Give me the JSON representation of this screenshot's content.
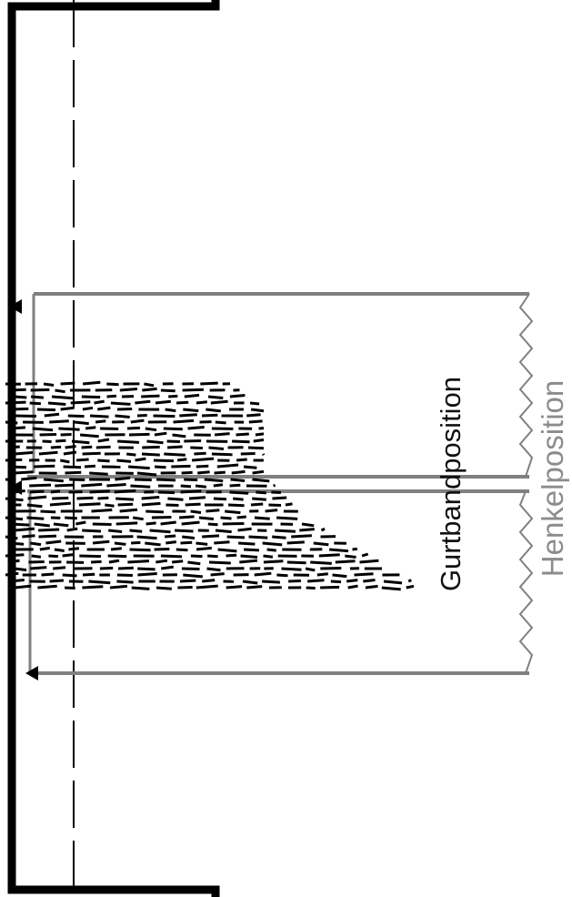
{
  "labels": {
    "gurtband": "Gurtbandposition",
    "henkel": "Henkelposition"
  },
  "colors": {
    "outline": "#000000",
    "guide": "#808080",
    "henkel_text": "#8c8c8c",
    "gurtband_text": "#111111",
    "background": "#ffffff"
  }
}
